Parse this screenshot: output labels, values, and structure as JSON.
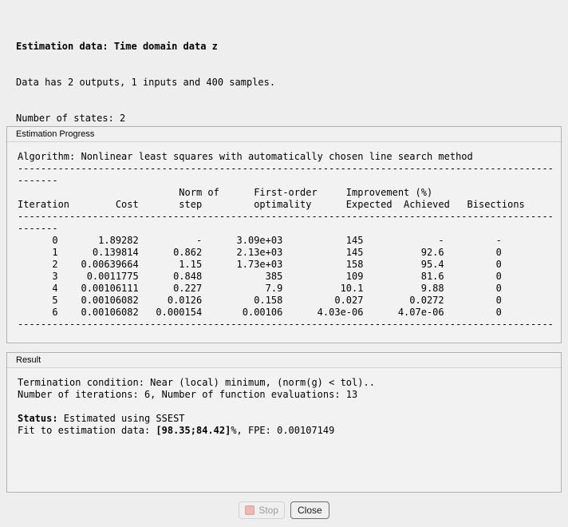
{
  "summary": {
    "title": "Estimation data: Time domain data z",
    "line2": "Data has 2 outputs, 1 inputs and 400 samples.",
    "line3": "Number of states: 2"
  },
  "progress": {
    "panel_title": "Estimation Progress",
    "algorithm": "Nonlinear least squares with automatically chosen line search method",
    "log_lines": [
      "Algorithm: Nonlinear least squares with automatically chosen line search method",
      "---------------------------------------------------------------------------------------------",
      "-------",
      "                            Norm of      First-order     Improvement (%)",
      "Iteration        Cost       step         optimality      Expected  Achieved   Bisections",
      "---------------------------------------------------------------------------------------------",
      "-------",
      "      0       1.89282          -      3.09e+03           145             -         -",
      "      1      0.139814      0.862      2.13e+03           145          92.6         0",
      "      2    0.00639664       1.15      1.73e+03           158          95.4         0",
      "      3     0.0011775      0.848           385           109          81.6         0",
      "      4    0.00106111      0.227           7.9          10.1          9.88         0",
      "      5    0.00106082     0.0126         0.158         0.027        0.0272         0",
      "      6    0.00106082   0.000154       0.00106      4.03e-06      4.07e-06         0",
      "---------------------------------------------------------------------------------------------"
    ],
    "table": {
      "columns": [
        "Iteration",
        "Cost",
        "Norm of step",
        "First-order optimality",
        "Expected Improvement (%)",
        "Achieved Improvement (%)",
        "Bisections"
      ],
      "rows": [
        [
          "0",
          "1.89282",
          "-",
          "3.09e+03",
          "145",
          "-",
          "-"
        ],
        [
          "1",
          "0.139814",
          "0.862",
          "2.13e+03",
          "145",
          "92.6",
          "0"
        ],
        [
          "2",
          "0.00639664",
          "1.15",
          "1.73e+03",
          "158",
          "95.4",
          "0"
        ],
        [
          "3",
          "0.0011775",
          "0.848",
          "385",
          "109",
          "81.6",
          "0"
        ],
        [
          "4",
          "0.00106111",
          "0.227",
          "7.9",
          "10.1",
          "9.88",
          "0"
        ],
        [
          "5",
          "0.00106082",
          "0.0126",
          "0.158",
          "0.027",
          "0.0272",
          "0"
        ],
        [
          "6",
          "0.00106082",
          "0.000154",
          "0.00106",
          "4.03e-06",
          "4.07e-06",
          "0"
        ]
      ]
    }
  },
  "result": {
    "panel_title": "Result",
    "line1": "Termination condition: Near (local) minimum, (norm(g) < tol)..",
    "line2": "Number of iterations: 6, Number of function evaluations: 13",
    "status_label": "Status:",
    "status_rest": " Estimated using SSEST",
    "fit_prefix": "Fit to estimation data: ",
    "fit_bold": "[98.35;84.42]",
    "fit_suffix": "%, FPE: 0.00107149"
  },
  "buttons": {
    "stop_label": "Stop",
    "close_label": "Close"
  },
  "colors": {
    "stop_icon_fill": "#f0b7b0",
    "stop_icon_border": "#dfa29a"
  }
}
